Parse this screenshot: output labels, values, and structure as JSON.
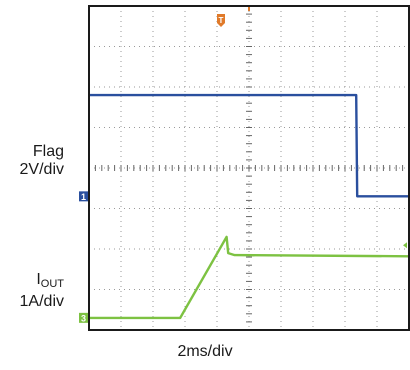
{
  "chart_data": {
    "type": "line",
    "grid": true,
    "x_divisions": 10,
    "y_divisions": 8,
    "xlim": [
      0,
      10
    ],
    "ylim": [
      -3.3,
      4.7
    ],
    "channel_labels": {
      "flag_name": "Flag",
      "flag_scale": "2V/div",
      "iout_main": "I",
      "iout_sub": "OUT",
      "iout_scale": "1A/div"
    },
    "xlabel": "2ms/div",
    "trigger_marker": "T",
    "series": [
      {
        "key": "flag",
        "color": "#2a4f9e",
        "channel_marker": "1",
        "reference_level": 0,
        "points": [
          [
            0,
            2.5
          ],
          [
            8.35,
            2.5
          ],
          [
            8.38,
            0.0
          ],
          [
            10,
            0.0
          ]
        ]
      },
      {
        "key": "iout",
        "color": "#7dc242",
        "channel_marker": "3",
        "reference_level": -3.0,
        "points": [
          [
            0,
            -3.0
          ],
          [
            2.85,
            -3.0
          ],
          [
            4.3,
            -1.0
          ],
          [
            4.35,
            -1.4
          ],
          [
            4.55,
            -1.45
          ],
          [
            10,
            -1.48
          ]
        ]
      }
    ]
  }
}
